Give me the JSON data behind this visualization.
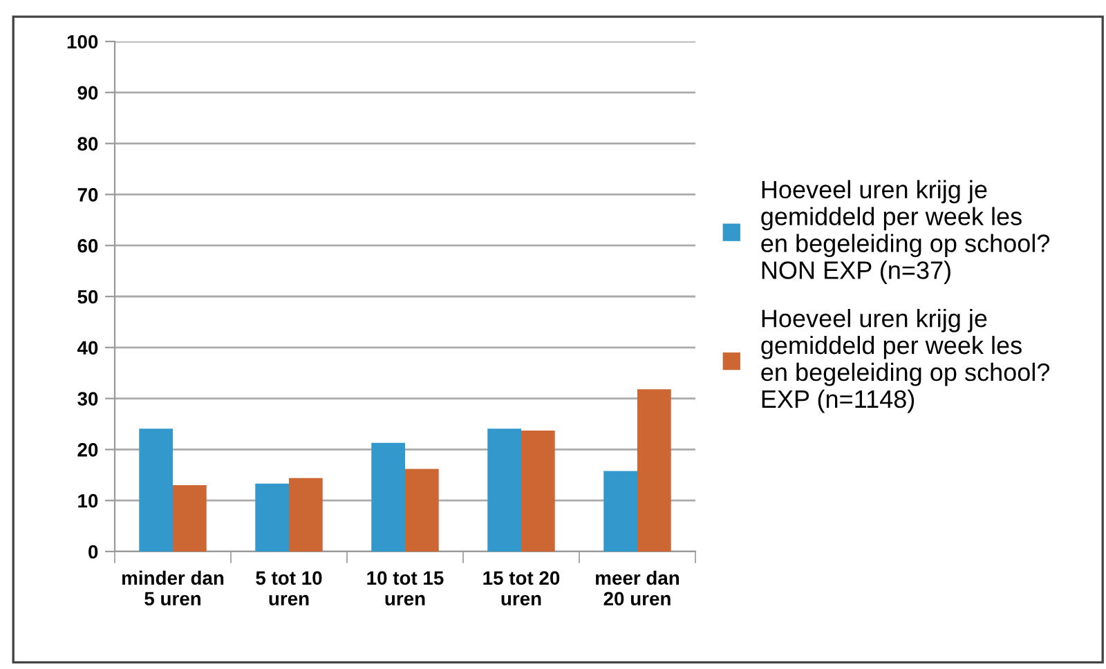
{
  "chart_data": {
    "type": "bar",
    "categories": [
      "minder dan\n5 uren",
      "5 tot 10\nuren",
      "10 tot 15\nuren",
      "15 tot 20\nuren",
      "meer dan\n20 uren"
    ],
    "series": [
      {
        "name": "Hoeveel uren krijg je\ngemiddeld per week les\nen begeleiding op school?\nNON EXP (n=37)",
        "color": "#3399cc",
        "values": [
          24.1,
          13.3,
          21.3,
          24.1,
          15.8
        ]
      },
      {
        "name": "Hoeveel uren krijg je\ngemiddeld per week les\nen begeleiding op school?\nEXP (n=1148)",
        "color": "#cc6633",
        "values": [
          13.0,
          14.4,
          16.2,
          23.7,
          31.8
        ]
      }
    ],
    "ylim": [
      0,
      100
    ],
    "yticks": [
      0,
      10,
      20,
      30,
      40,
      50,
      60,
      70,
      80,
      90,
      100
    ],
    "grid": "y",
    "legend": "right"
  }
}
